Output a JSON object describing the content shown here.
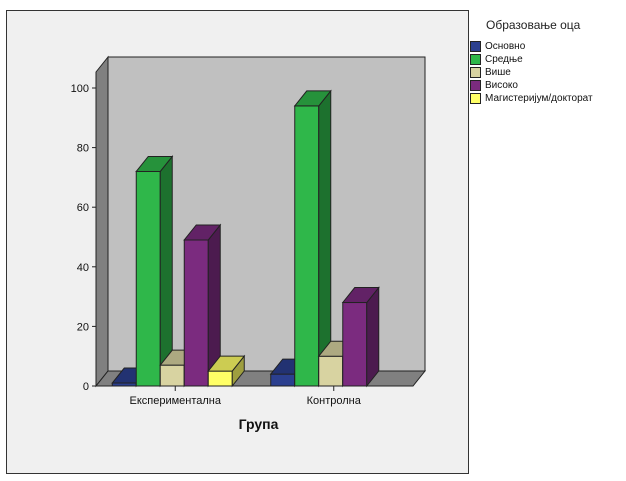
{
  "chart_data": {
    "type": "bar",
    "title": "",
    "xlabel": "Група",
    "ylabel": "",
    "categories": [
      "Експериментална",
      "Контролна"
    ],
    "series": [
      {
        "name": "Основно",
        "values": [
          1,
          4
        ],
        "color": "#2b3f8f"
      },
      {
        "name": "Средње",
        "values": [
          72,
          94
        ],
        "color": "#2fb74a"
      },
      {
        "name": "Више",
        "values": [
          7,
          10
        ],
        "color": "#d8d3a1"
      },
      {
        "name": "Високо",
        "values": [
          49,
          28
        ],
        "color": "#7b2b7f"
      },
      {
        "name": "Магистеријум/докторат",
        "values": [
          5,
          0
        ],
        "color": "#ffff66"
      }
    ],
    "ylim": [
      0,
      100
    ],
    "yticks": [
      "0",
      "20",
      "40",
      "60",
      "80",
      "100"
    ],
    "legend": {
      "title": "Образовање оца",
      "position": "top-right"
    },
    "grid": false
  }
}
